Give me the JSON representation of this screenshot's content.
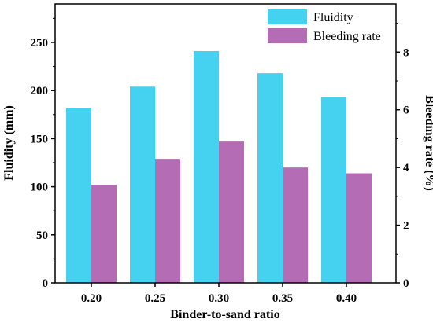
{
  "chart_data": {
    "type": "bar",
    "categories": [
      "0.20",
      "0.25",
      "0.30",
      "0.35",
      "0.40"
    ],
    "series": [
      {
        "name": "Fluidity",
        "axis": "left",
        "color": "#45D2F0",
        "values": [
          182,
          204,
          241,
          218,
          193
        ]
      },
      {
        "name": "Bleeding rate",
        "axis": "right",
        "color": "#B46CB4",
        "values": [
          3.4,
          4.3,
          4.9,
          4.0,
          3.8
        ]
      }
    ],
    "xlabel": "Binder-to-sand ratio",
    "ylabel": "Fluidity (mm)",
    "y2label": "Bleeding rate (%)",
    "ylim": [
      0,
      290
    ],
    "y2lim": [
      0,
      9.67
    ],
    "yticks": [
      0,
      50,
      100,
      150,
      200,
      250
    ],
    "y2ticks": [
      0,
      2,
      4,
      6,
      8
    ],
    "grid": false,
    "legend_position": "top-right"
  }
}
